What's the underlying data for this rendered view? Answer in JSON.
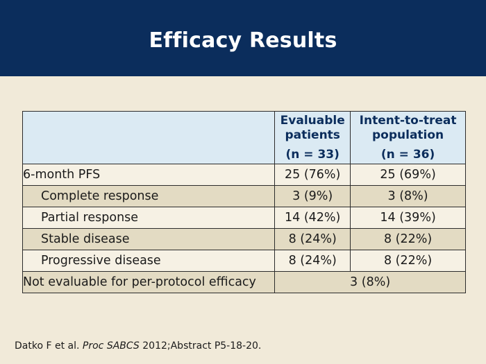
{
  "slide": {
    "title": "Efficacy Results"
  },
  "table": {
    "headers": {
      "col1": "",
      "col2_line1": "Evaluable",
      "col2_line2": "patients",
      "col2_line3": "(n = 33)",
      "col3_line1": "Intent-to-treat",
      "col3_line2": "population",
      "col3_line3": "(n = 36)"
    },
    "rows": [
      {
        "label": "6-month PFS",
        "evaluable": "25 (76%)",
        "itt": "25 (69%)"
      },
      {
        "label": "Complete response",
        "evaluable": "3 (9%)",
        "itt": "3 (8%)"
      },
      {
        "label": "Partial response",
        "evaluable": "14 (42%)",
        "itt": "14 (39%)"
      },
      {
        "label": "Stable disease",
        "evaluable": "8 (24%)",
        "itt": "8 (22%)"
      },
      {
        "label": "Progressive disease",
        "evaluable": "8 (24%)",
        "itt": "8 (22%)"
      }
    ],
    "final_row": {
      "label": "Not evaluable for per-protocol efficacy",
      "value": "3 (8%)"
    }
  },
  "citation": {
    "authors": "Datko F et al. ",
    "journal": "Proc SABCS",
    "rest": " 2012;Abstract P5-18-20."
  },
  "colors": {
    "header_bg": "#0b2d5c",
    "page_bg": "#f1ead9",
    "table_header_bg": "#dbeaf3",
    "row_light": "#f6f1e4",
    "row_dark": "#e3dbc3"
  }
}
